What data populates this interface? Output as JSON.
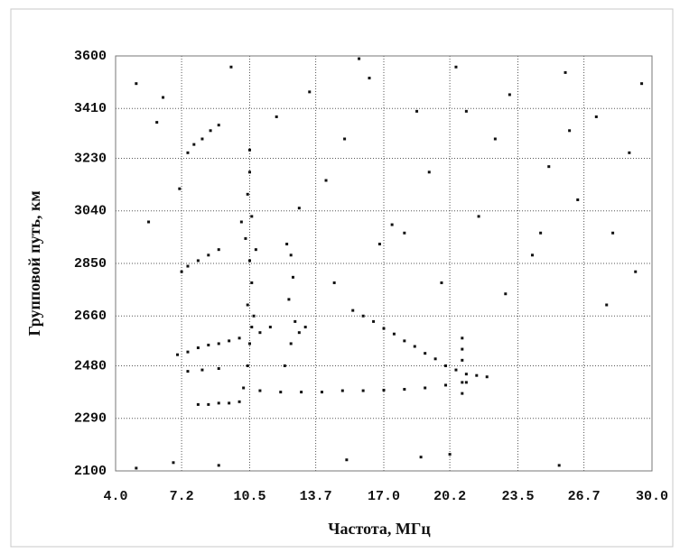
{
  "chart_data": {
    "type": "scatter",
    "x_label": "Частота, МГц",
    "y_label": "Групповой путь, км",
    "xlim": [
      4.0,
      30.0
    ],
    "ylim": [
      2100,
      3600
    ],
    "xticks": [
      {
        "value": 4.0,
        "label": "4.0"
      },
      7.2,
      10.5,
      13.7,
      {
        "value": 17.0,
        "label": "17.0"
      },
      20.2,
      23.5,
      26.7,
      {
        "value": 30.0,
        "label": "30.0"
      }
    ],
    "yticks": [
      2100,
      2290,
      2480,
      2660,
      2850,
      3040,
      3230,
      3410,
      3600
    ],
    "grid": true,
    "color": "#111111",
    "x": [
      15.5,
      16,
      16.5,
      17,
      17.5,
      18,
      18.5,
      19,
      19.5,
      20,
      20.5,
      21,
      21.5,
      11,
      12,
      13,
      14,
      15,
      16,
      17,
      18,
      19,
      20,
      21,
      22,
      20.8,
      20.8,
      20.8,
      20.8,
      20.8,
      10.2,
      10.4,
      10.5,
      10.6,
      10.4,
      10.6,
      10.5,
      10.3,
      10.6,
      10.4,
      10.5,
      10.5,
      10.7,
      10.8,
      10.1,
      12.2,
      12.5,
      12.7,
      12.4,
      12.6,
      12.5,
      12.3,
      12.9,
      13.2,
      7.5,
      7.8,
      8.2,
      8.6,
      9,
      7.5,
      8,
      8.5,
      9,
      7.2,
      7,
      7.5,
      8,
      8.5,
      9,
      9.5,
      10,
      11,
      11.5,
      8,
      8.5,
      9,
      9.5,
      10,
      7.5,
      8.2,
      9,
      5,
      6.3,
      7.1,
      9.6,
      11.8,
      13.4,
      14.2,
      15.1,
      16.3,
      17.4,
      18.6,
      19.2,
      20.5,
      21.6,
      22.4,
      23.1,
      24.2,
      25,
      25.8,
      26.4,
      27.3,
      28.1,
      28.9,
      29.5,
      5.6,
      6,
      14.6,
      16.8,
      22.9,
      24.6,
      27.8,
      29.2,
      19.8,
      15.8,
      12.9,
      18,
      21,
      26,
      5,
      6.8,
      9,
      15.2,
      18.8,
      20.2,
      25.5
    ],
    "values": [
      2680,
      2660,
      2640,
      2615,
      2595,
      2570,
      2550,
      2525,
      2505,
      2480,
      2465,
      2450,
      2445,
      2390,
      2385,
      2385,
      2385,
      2390,
      2390,
      2392,
      2395,
      2400,
      2410,
      2420,
      2440,
      2380,
      2420,
      2500,
      2540,
      2580,
      2400,
      2480,
      2560,
      2620,
      2700,
      2780,
      2860,
      2940,
      3020,
      3100,
      3180,
      3260,
      2660,
      2900,
      3000,
      2480,
      2560,
      2640,
      2720,
      2800,
      2880,
      2920,
      2600,
      2620,
      3250,
      3280,
      3300,
      3330,
      3350,
      2840,
      2860,
      2880,
      2900,
      2820,
      2520,
      2530,
      2545,
      2555,
      2560,
      2570,
      2580,
      2600,
      2620,
      2340,
      2340,
      2345,
      2345,
      2350,
      2460,
      2465,
      2470,
      3500,
      3450,
      3120,
      3560,
      3380,
      3470,
      3150,
      3300,
      3520,
      2990,
      3400,
      3180,
      3560,
      3020,
      3300,
      3460,
      2880,
      3200,
      3540,
      3080,
      3380,
      2960,
      3250,
      3500,
      3000,
      3360,
      2780,
      2920,
      2740,
      2960,
      2700,
      2820,
      2780,
      3590,
      3050,
      2960,
      3400,
      3330,
      2110,
      2130,
      2120,
      2140,
      2150,
      2160,
      2120
    ]
  }
}
